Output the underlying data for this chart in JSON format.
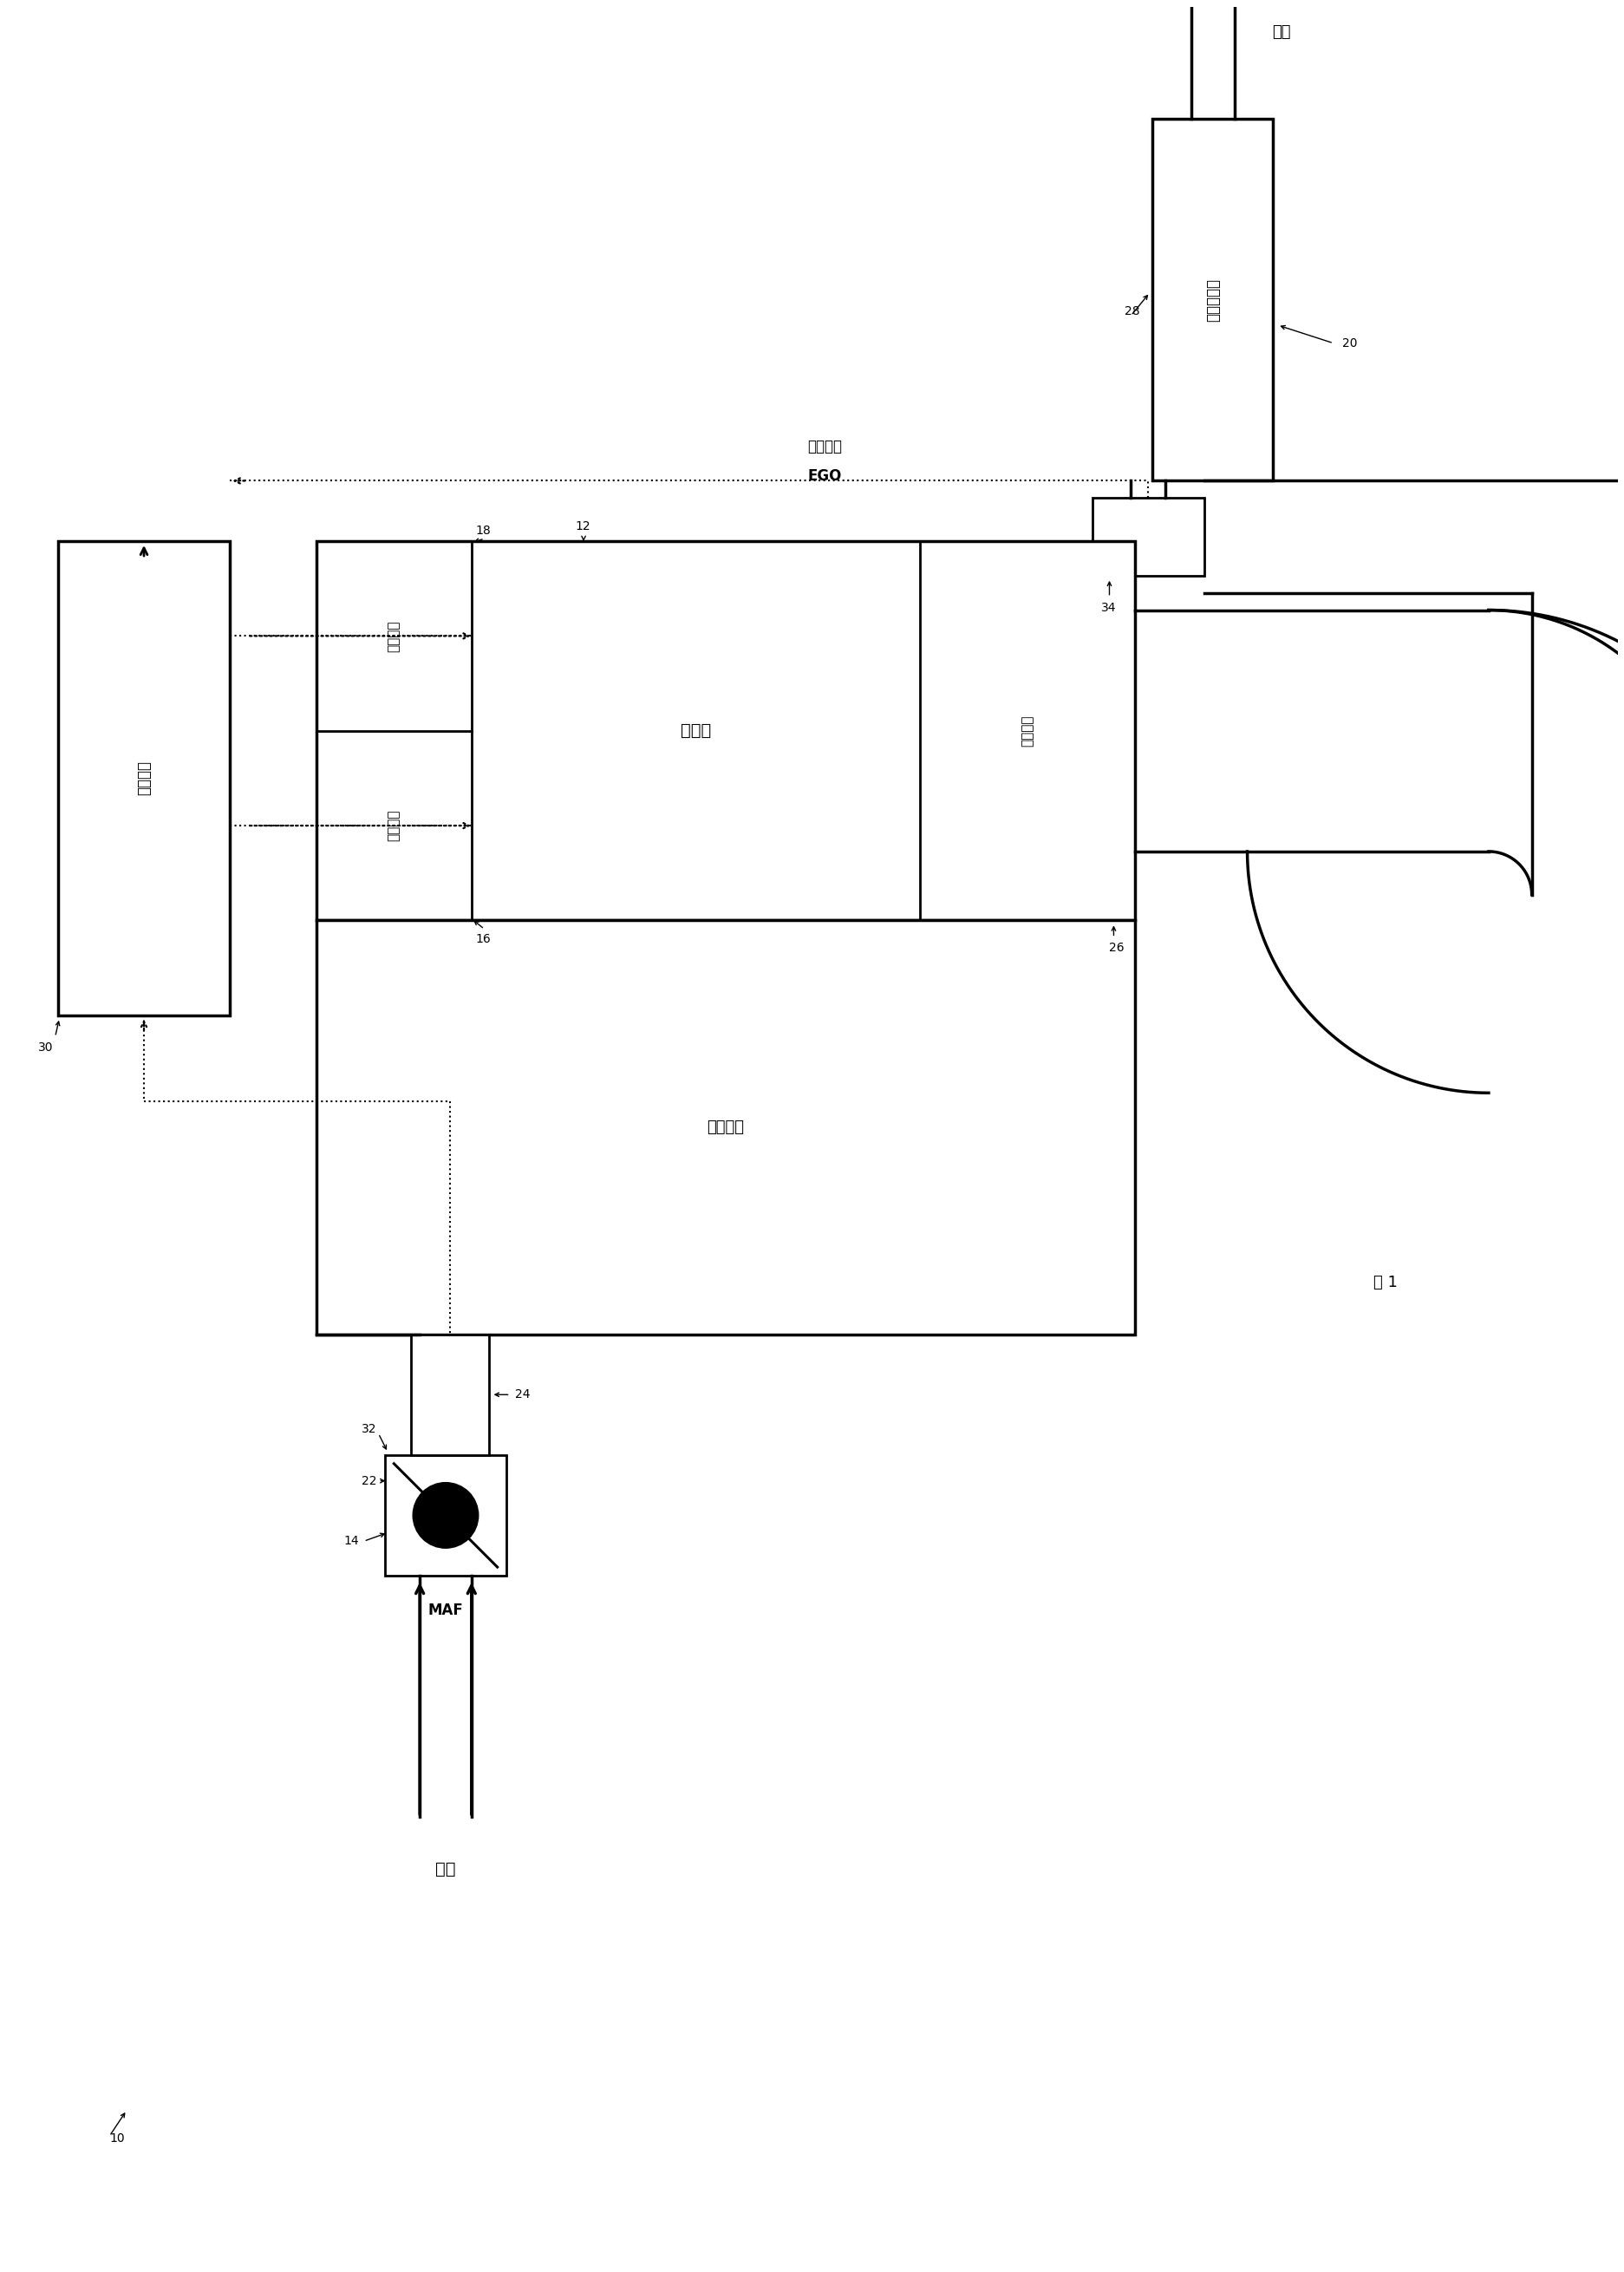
{
  "bg_color": "#ffffff",
  "fig_width": 18.73,
  "fig_height": 26.2,
  "labels": {
    "waste_gas": "废气",
    "catalyst_converter": "催化转换器",
    "pre_catalyst_ego_zh": "催化剂前",
    "pre_catalyst_ego_en": "EGO",
    "engine": "发动机",
    "exhaust_manifold": "排气歧管",
    "intake_manifold": "进气歧管",
    "ignition_system": "点火系统",
    "fuel_system": "燃料系统",
    "control_module": "控制模块",
    "maf": "MAF",
    "air_in": "空气",
    "fig_label": "图 1",
    "n10": "10",
    "n12": "12",
    "n14": "14",
    "n16": "16",
    "n18": "18",
    "n20": "20",
    "n22": "22",
    "n24": "24",
    "n26": "26",
    "n28": "28",
    "n30": "30",
    "n32": "32",
    "n34": "34"
  }
}
